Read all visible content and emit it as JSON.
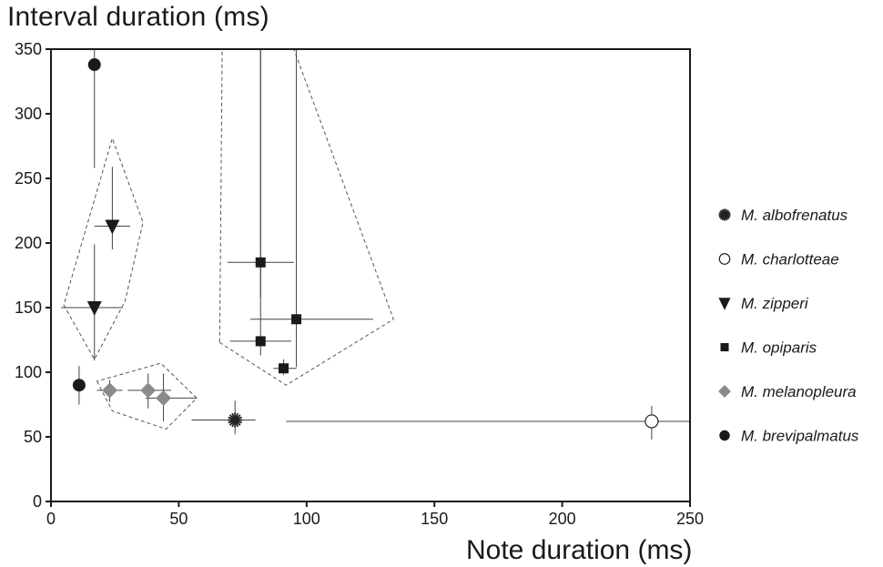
{
  "chart_data": {
    "type": "scatter",
    "ylabel": "Interval duration (ms)",
    "xlabel": "Note duration (ms)",
    "xlim": [
      0,
      250
    ],
    "ylim": [
      0,
      350
    ],
    "xticks": [
      0,
      50,
      100,
      150,
      200,
      250
    ],
    "yticks": [
      0,
      50,
      100,
      150,
      200,
      250,
      300,
      350
    ],
    "legend_position": "right",
    "series": [
      {
        "name": "M. albofrenatus",
        "marker": "star",
        "color": "#222222",
        "points": [
          {
            "x": 72,
            "y": 63,
            "xerr": [
              55,
              80
            ],
            "yerr": [
              52,
              78
            ]
          }
        ]
      },
      {
        "name": "M. charlotteae",
        "marker": "open-circle",
        "color": "#222222",
        "points": [
          {
            "x": 235,
            "y": 62,
            "xerr": [
              92,
              250
            ],
            "yerr": [
              48,
              74
            ]
          }
        ]
      },
      {
        "name": "M. zipperi",
        "marker": "triangle-down",
        "color": "#1a1a1a",
        "points": [
          {
            "x": 24,
            "y": 213,
            "xerr": [
              17,
              31
            ],
            "yerr": [
              195,
              259
            ]
          },
          {
            "x": 17,
            "y": 150,
            "xerr": [
              4,
              28
            ],
            "yerr": [
              109,
              199
            ]
          }
        ]
      },
      {
        "name": "M. opiparis",
        "marker": "square",
        "color": "#1a1a1a",
        "points": [
          {
            "x": 82,
            "y": 185,
            "xerr": [
              69,
              95
            ],
            "yerr": [
              158,
              350
            ]
          },
          {
            "x": 96,
            "y": 141,
            "xerr": [
              78,
              126
            ],
            "yerr": [
              104,
              350
            ]
          },
          {
            "x": 82,
            "y": 124,
            "xerr": [
              70,
              94
            ],
            "yerr": [
              113,
              350
            ]
          },
          {
            "x": 91,
            "y": 103,
            "xerr": [
              87,
              96
            ],
            "yerr": [
              98,
              110
            ]
          }
        ]
      },
      {
        "name": "M. melanopleura",
        "marker": "diamond",
        "color": "#8a8a8a",
        "points": [
          {
            "x": 23,
            "y": 86,
            "xerr": [
              18,
              28
            ],
            "yerr": [
              77,
              94
            ]
          },
          {
            "x": 38,
            "y": 86,
            "xerr": [
              30,
              47
            ],
            "yerr": [
              72,
              99
            ]
          },
          {
            "x": 44,
            "y": 80,
            "xerr": [
              37,
              57
            ],
            "yerr": [
              62,
              99
            ]
          }
        ]
      },
      {
        "name": "M. brevipalmatus",
        "marker": "filled-circle",
        "color": "#1a1a1a",
        "points": [
          {
            "x": 17,
            "y": 338,
            "xerr": [
              17,
              17
            ],
            "yerr": [
              258,
              350
            ]
          },
          {
            "x": 11,
            "y": 90,
            "xerr": [
              11,
              11
            ],
            "yerr": [
              75,
              105
            ]
          }
        ]
      }
    ],
    "hulls": [
      {
        "group": "M. zipperi",
        "points": [
          [
            5,
            152
          ],
          [
            17,
            110
          ],
          [
            29,
            155
          ],
          [
            36,
            216
          ],
          [
            24,
            281
          ]
        ]
      },
      {
        "group": "M. opiparis",
        "points": [
          [
            66,
            123
          ],
          [
            92,
            90
          ],
          [
            134,
            141
          ],
          [
            95,
            350
          ],
          [
            67,
            350
          ]
        ]
      },
      {
        "group": "M. melanopleura",
        "points": [
          [
            18,
            93
          ],
          [
            24,
            70
          ],
          [
            45,
            56
          ],
          [
            57,
            80
          ],
          [
            43,
            107
          ]
        ]
      }
    ]
  }
}
